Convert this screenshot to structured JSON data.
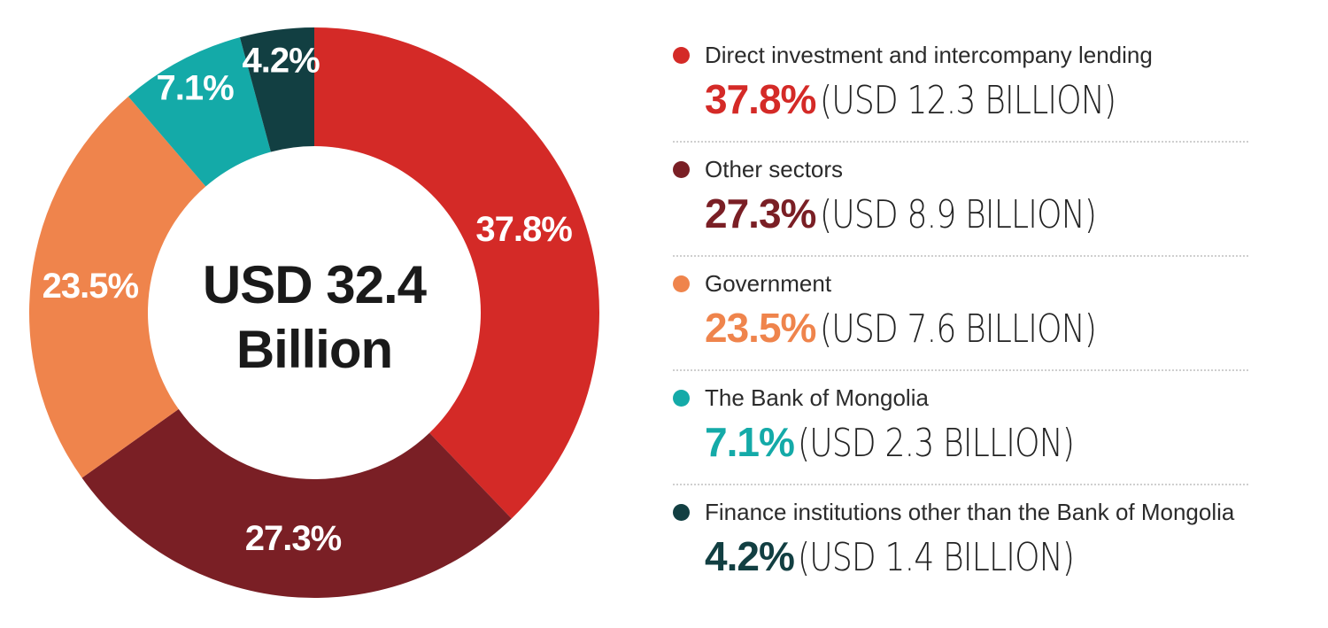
{
  "chart_data": {
    "type": "pie",
    "donut": true,
    "center_label": [
      "USD 32.4",
      "Billion"
    ],
    "slices": [
      {
        "name": "Direct investment and intercompany lending",
        "value": 37.8,
        "label": "37.8%",
        "amount": "(USD 12.3 BILLION)",
        "color": "#d42a27"
      },
      {
        "name": "Other sectors",
        "value": 27.3,
        "label": "27.3%",
        "amount": "(USD 8.9 BILLION)",
        "color": "#7a1f25"
      },
      {
        "name": "Government",
        "value": 23.5,
        "label": "23.5%",
        "amount": "(USD 7.6 BILLION)",
        "color": "#ef844c"
      },
      {
        "name": "The Bank of Mongolia",
        "value": 7.1,
        "label": "7.1%",
        "amount": "(USD 2.3 BILLION)",
        "color": "#14aaa8"
      },
      {
        "name": "Finance institutions other than the Bank of Mongolia",
        "value": 4.2,
        "label": "4.2%",
        "amount": "(USD 1.4 BILLION)",
        "color": "#123f42"
      }
    ],
    "legend_position": "right"
  }
}
